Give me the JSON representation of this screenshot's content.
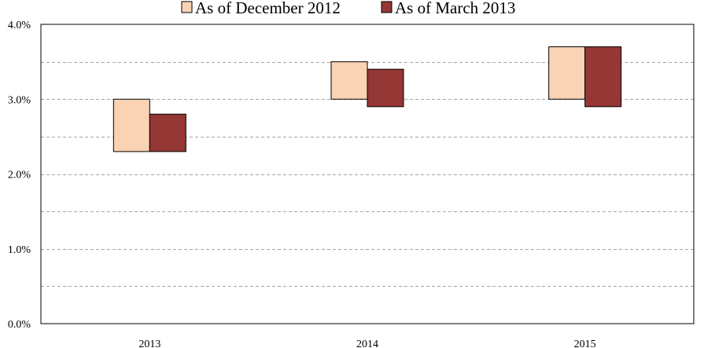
{
  "chart_data": {
    "type": "bar",
    "subtype": "floating-range",
    "categories": [
      "2013",
      "2014",
      "2015"
    ],
    "series": [
      {
        "name": "As of December 2012",
        "color": "#fad2b4",
        "ranges": [
          [
            2.3,
            3.0
          ],
          [
            3.0,
            3.5
          ],
          [
            3.0,
            3.7
          ]
        ]
      },
      {
        "name": "As of March 2013",
        "color": "#953735",
        "ranges": [
          [
            2.3,
            2.8
          ],
          [
            2.9,
            3.4
          ],
          [
            2.9,
            3.7
          ]
        ]
      }
    ],
    "ylim": [
      0,
      4.0
    ],
    "yticks": [
      0.0,
      1.0,
      2.0,
      3.0,
      4.0
    ],
    "yticklabels": [
      "0.0%",
      "1.0%",
      "2.0%",
      "3.0%",
      "4.0%"
    ],
    "minor_gridlines": [
      0.5,
      1.5,
      2.5,
      3.5
    ],
    "grid": "horizontal-dashed",
    "legend": "top-center"
  }
}
